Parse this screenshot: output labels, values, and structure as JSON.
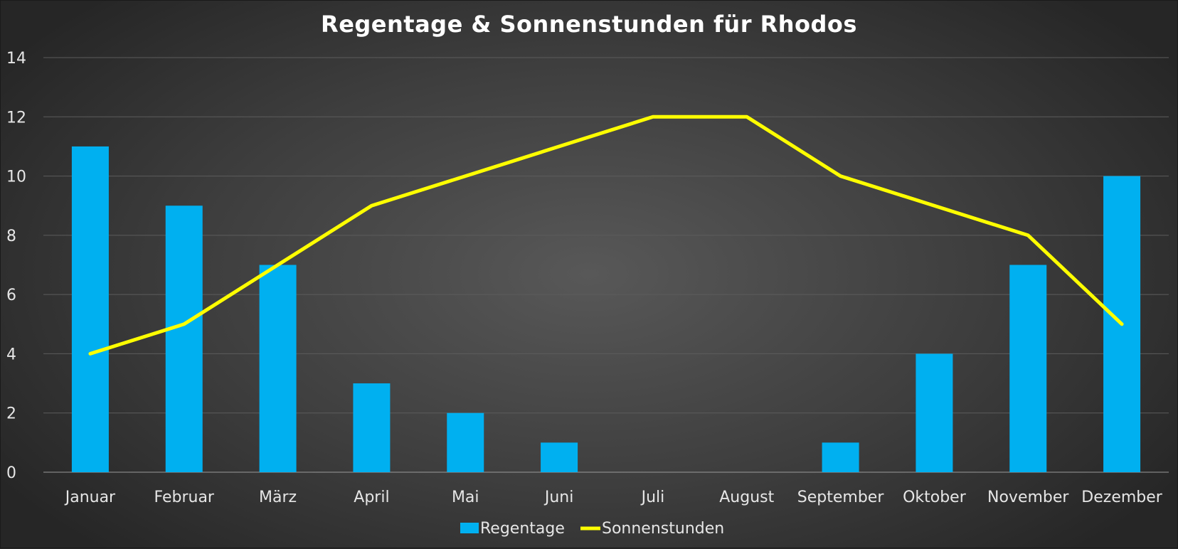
{
  "chart_data": {
    "type": "bar",
    "title": "Regentage & Sonnenstunden für Rhodos",
    "categories": [
      "Januar",
      "Februar",
      "März",
      "April",
      "Mai",
      "Juni",
      "Juli",
      "August",
      "September",
      "Oktober",
      "November",
      "Dezember"
    ],
    "series": [
      {
        "name": "Regentage",
        "type": "bar",
        "color": "#00b0f0",
        "values": [
          11,
          9,
          7,
          3,
          2,
          1,
          0,
          0,
          1,
          4,
          7,
          10
        ]
      },
      {
        "name": "Sonnenstunden",
        "type": "line",
        "color": "#ffff00",
        "values": [
          4,
          5,
          7,
          9,
          10,
          11,
          12,
          12,
          10,
          9,
          8,
          5
        ]
      }
    ],
    "ylim": [
      0,
      14
    ],
    "yticks": [
      "0",
      "2",
      "4",
      "6",
      "8",
      "10",
      "12",
      "14"
    ],
    "grid": true,
    "legend": "bottom-center"
  }
}
